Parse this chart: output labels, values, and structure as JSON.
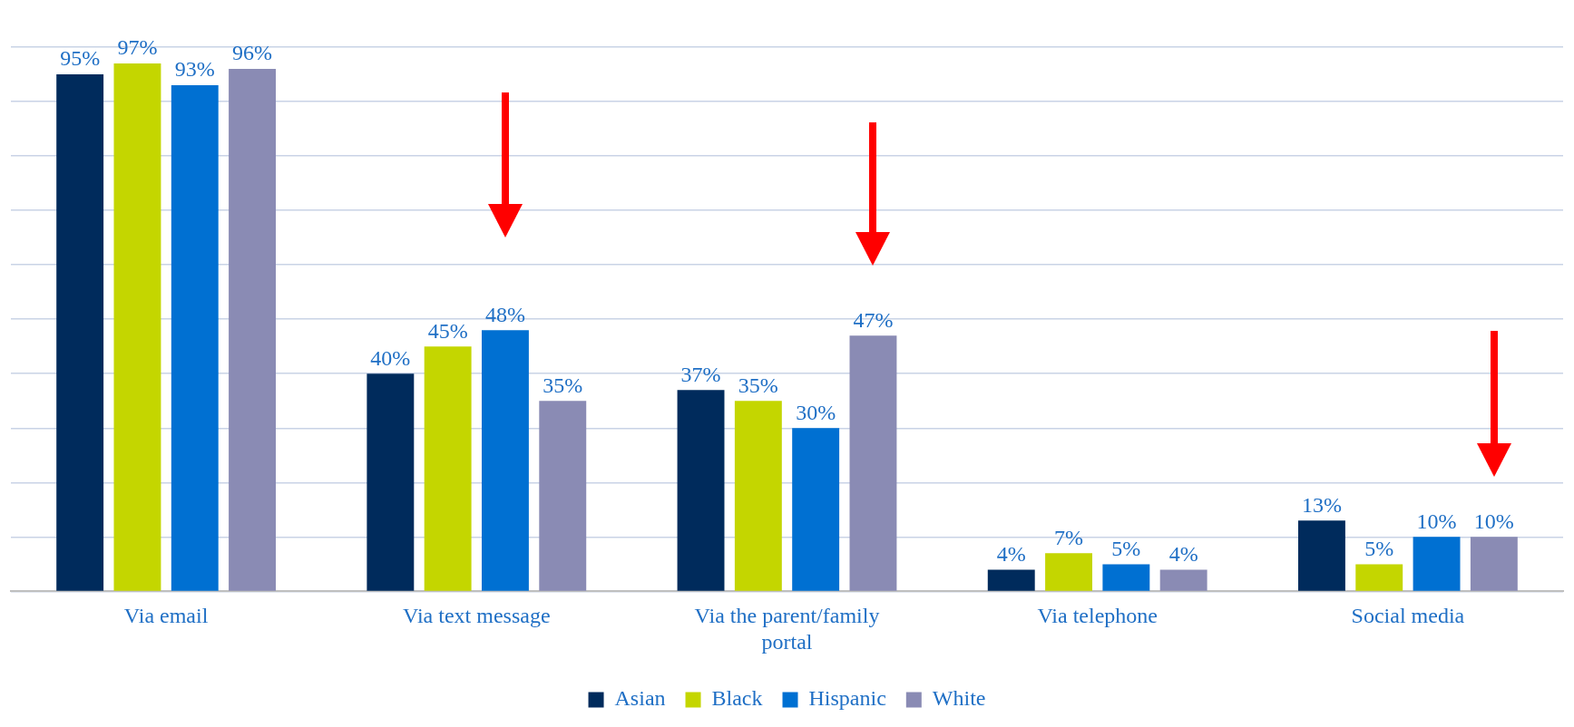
{
  "chart_data": {
    "type": "bar",
    "categories": [
      "Via email",
      "Via text message",
      "Via the parent/family portal",
      "Via telephone",
      "Social media"
    ],
    "series": [
      {
        "name": "Asian",
        "color": "#002b5c",
        "values": [
          95,
          40,
          37,
          4,
          13
        ],
        "value_labels": [
          "95%",
          "40%",
          "37%",
          "4%",
          "13%"
        ]
      },
      {
        "name": "Black",
        "color": "#c4d600",
        "values": [
          97,
          45,
          35,
          7,
          5
        ],
        "value_labels": [
          "97%",
          "45%",
          "35%",
          "7%",
          "5%"
        ]
      },
      {
        "name": "Hispanic",
        "color": "#0070d2",
        "values": [
          93,
          48,
          30,
          5,
          10
        ],
        "value_labels": [
          "93%",
          "48%",
          "30%",
          "5%",
          "10%"
        ]
      },
      {
        "name": "White",
        "color": "#8a8bb4",
        "values": [
          96,
          35,
          47,
          4,
          10
        ],
        "value_labels": [
          "96%",
          "35%",
          "47%",
          "4%",
          "10%"
        ]
      }
    ],
    "ylim": [
      0,
      100
    ],
    "yticks": [
      {
        "value": 0,
        "label": null
      },
      {
        "value": 10,
        "label": null
      },
      {
        "value": 20,
        "label": null
      },
      {
        "value": 30,
        "label": null
      },
      {
        "value": 40,
        "label": null
      },
      {
        "value": 50,
        "label": null
      },
      {
        "value": 60,
        "label": null
      },
      {
        "value": 70,
        "label": null
      },
      {
        "value": 80,
        "label": null
      },
      {
        "value": 90,
        "label": null
      },
      {
        "value": 100,
        "label": null
      }
    ],
    "tick_labels": "x",
    "grid": "y",
    "legend": "bottom"
  }
}
